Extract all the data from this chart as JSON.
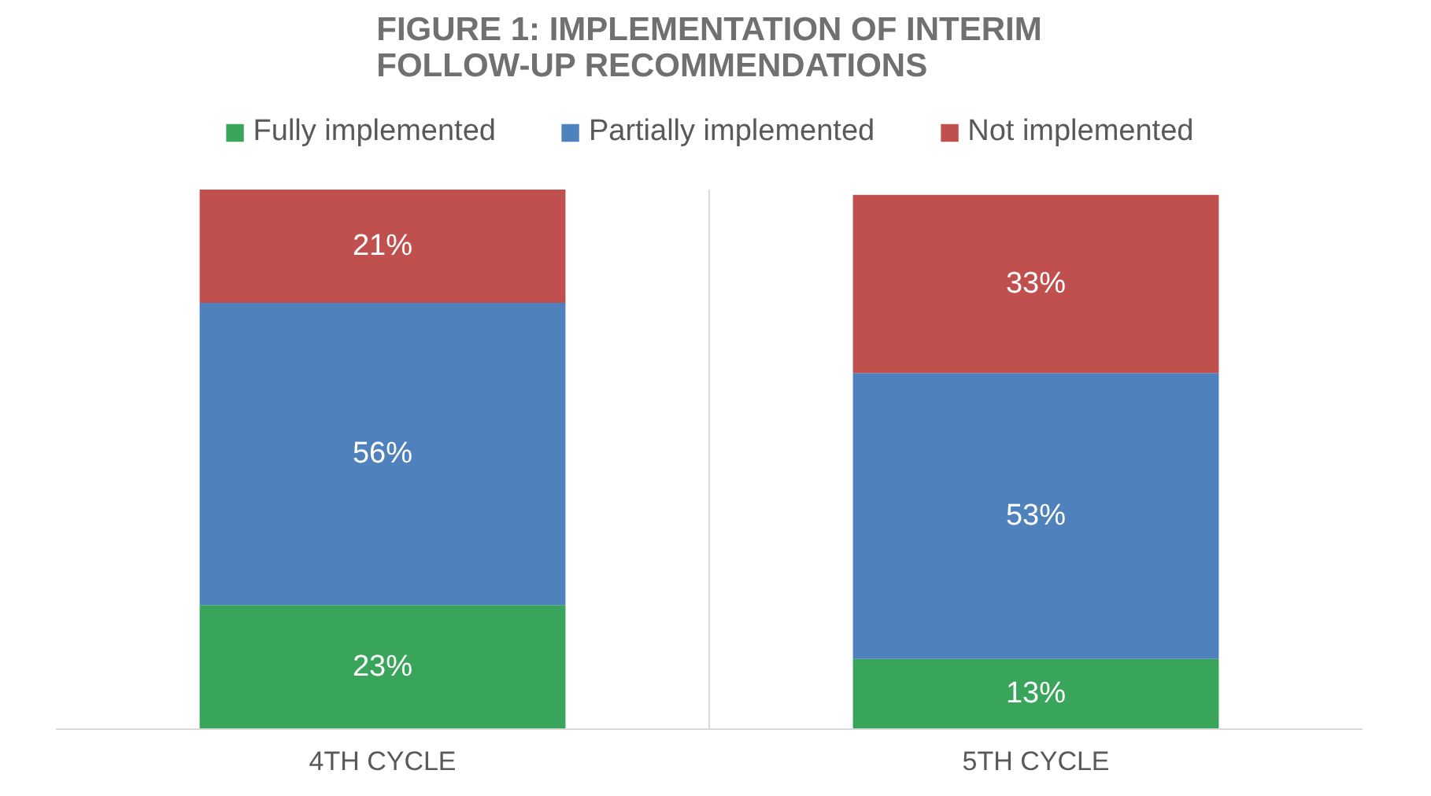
{
  "chart_data": {
    "type": "bar",
    "stacked": true,
    "title": "FIGURE 1: IMPLEMENTATION OF INTERIM FOLLOW-UP RECOMMENDATIONS",
    "categories": [
      "4TH CYCLE",
      "5TH CYCLE"
    ],
    "legend": "top",
    "series": [
      {
        "name": "Fully implemented",
        "color": "#38a55a",
        "values": [
          23,
          13
        ],
        "value_labels": [
          "23%",
          "13%"
        ]
      },
      {
        "name": "Partially implemented",
        "color": "#4f81bd",
        "values": [
          56,
          53
        ],
        "value_labels": [
          "56%",
          "53%"
        ]
      },
      {
        "name": "Not implemented",
        "color": "#c0504d",
        "values": [
          21,
          33
        ],
        "value_labels": [
          "21%",
          "33%"
        ]
      }
    ]
  }
}
